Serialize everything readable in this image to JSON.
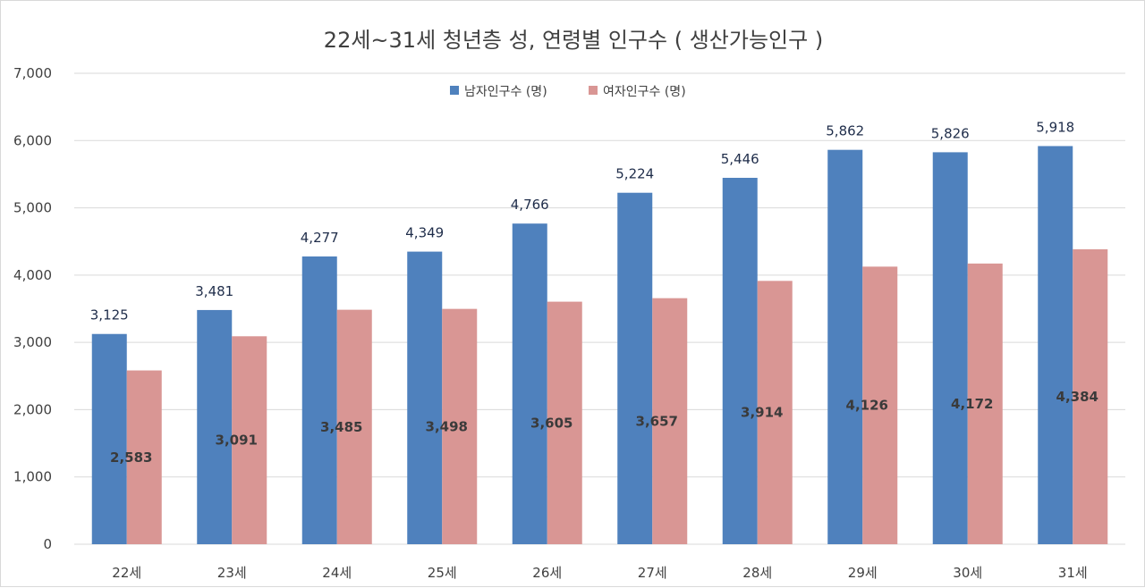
{
  "chart_data": {
    "type": "bar",
    "title": "22세~31세 청년층 성, 연령별 인구수 ( 생산가능인구 )",
    "categories": [
      "22세",
      "23세",
      "24세",
      "25세",
      "26세",
      "27세",
      "28세",
      "29세",
      "30세",
      "31세"
    ],
    "series": [
      {
        "name": "남자인구수 (명)",
        "color": "#4f81bd",
        "values": [
          3125,
          3481,
          4277,
          4349,
          4766,
          5224,
          5446,
          5862,
          5826,
          5918
        ],
        "labels": [
          "3,125",
          "3,481",
          "4,277",
          "4,349",
          "4,766",
          "5,224",
          "5,446",
          "5,862",
          "5,826",
          "5,918"
        ]
      },
      {
        "name": "여자인구수 (명)",
        "color": "#d99694",
        "values": [
          2583,
          3091,
          3485,
          3498,
          3605,
          3657,
          3914,
          4126,
          4172,
          4384
        ],
        "labels": [
          "2,583",
          "3,091",
          "3,485",
          "3,498",
          "3,605",
          "3,657",
          "3,914",
          "4,126",
          "4,172",
          "4,384"
        ]
      }
    ],
    "ylim": [
      0,
      7000
    ],
    "yticks": [
      0,
      1000,
      2000,
      3000,
      4000,
      5000,
      6000,
      7000
    ],
    "ytick_labels": [
      "0",
      "1,000",
      "2,000",
      "3,000",
      "4,000",
      "5,000",
      "6,000",
      "7,000"
    ],
    "xlabel": "",
    "ylabel": "",
    "grid": true,
    "legend_position": "top-center"
  }
}
